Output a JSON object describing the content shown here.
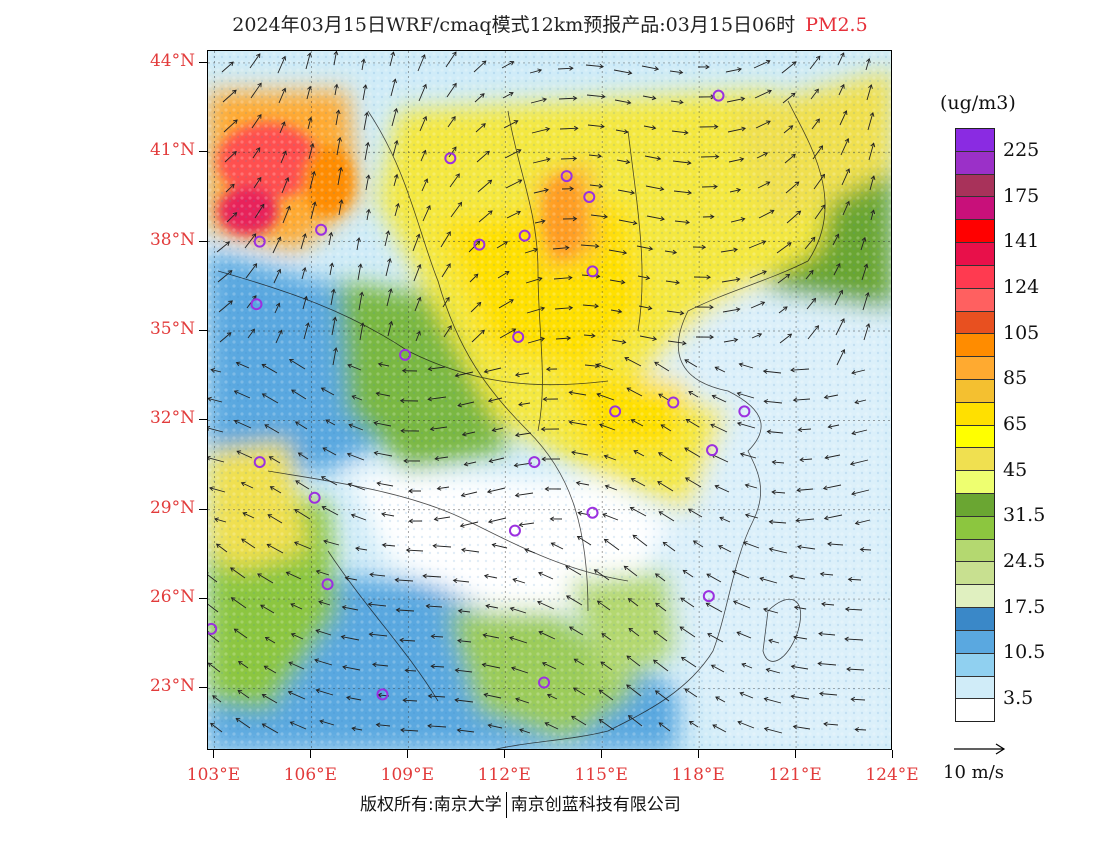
{
  "title": {
    "text": "2024年03月15日WRF/cmaq模式12km预报产品:03月15日06时",
    "pollutant": "PM2.5"
  },
  "map": {
    "lon_range": [
      102.8,
      124
    ],
    "lat_range": [
      20.9,
      44.4
    ],
    "lat_labels": [
      "44°N",
      "41°N",
      "38°N",
      "35°N",
      "32°N",
      "29°N",
      "26°N",
      "23°N"
    ],
    "lat_values": [
      44,
      41,
      38,
      35,
      32,
      29,
      26,
      23
    ],
    "lon_labels": [
      "103°E",
      "106°E",
      "109°E",
      "112°E",
      "115°E",
      "118°E",
      "121°E",
      "124°E"
    ],
    "lon_values": [
      103,
      106,
      109,
      112,
      115,
      118,
      121,
      124
    ],
    "city_markers": [
      {
        "lon": 118.6,
        "lat": 42.9
      },
      {
        "lon": 110.3,
        "lat": 40.8
      },
      {
        "lon": 113.9,
        "lat": 40.2
      },
      {
        "lon": 114.6,
        "lat": 39.5
      },
      {
        "lon": 104.4,
        "lat": 38.0
      },
      {
        "lon": 106.3,
        "lat": 38.4
      },
      {
        "lon": 111.2,
        "lat": 37.9
      },
      {
        "lon": 112.6,
        "lat": 38.2
      },
      {
        "lon": 114.7,
        "lat": 37.0
      },
      {
        "lon": 104.3,
        "lat": 35.9
      },
      {
        "lon": 108.9,
        "lat": 34.2
      },
      {
        "lon": 112.4,
        "lat": 34.8
      },
      {
        "lon": 115.4,
        "lat": 32.3
      },
      {
        "lon": 117.2,
        "lat": 32.6
      },
      {
        "lon": 119.4,
        "lat": 32.3
      },
      {
        "lon": 118.4,
        "lat": 31.0
      },
      {
        "lon": 104.4,
        "lat": 30.6
      },
      {
        "lon": 112.9,
        "lat": 30.6
      },
      {
        "lon": 106.1,
        "lat": 29.4
      },
      {
        "lon": 114.7,
        "lat": 28.9
      },
      {
        "lon": 112.3,
        "lat": 28.3
      },
      {
        "lon": 106.5,
        "lat": 26.5
      },
      {
        "lon": 118.3,
        "lat": 26.1
      },
      {
        "lon": 102.9,
        "lat": 25.0
      },
      {
        "lon": 113.2,
        "lat": 23.2
      },
      {
        "lon": 108.2,
        "lat": 22.8
      }
    ]
  },
  "legend": {
    "unit": "(ug/m3)",
    "colors": [
      "#8a2be2",
      "#9b30c8",
      "#a8325a",
      "#c8107a",
      "#ff0000",
      "#e8104a",
      "#ff3a50",
      "#ff6060",
      "#e85020",
      "#ff8c00",
      "#ffaa30",
      "#f4c030",
      "#ffe000",
      "#ffff00",
      "#f0e050",
      "#eeff70",
      "#6aa632",
      "#8cc63f",
      "#b4d870",
      "#c8e090",
      "#e0f0c0",
      "#3a88c8",
      "#5aa8e0",
      "#90d0f0",
      "#d0ecf8",
      "#ffffff"
    ],
    "labels": [
      "225",
      "175",
      "141",
      "124",
      "105",
      "85",
      "65",
      "45",
      "31.5",
      "24.5",
      "17.5",
      "10.5",
      "3.5"
    ],
    "wind_ref": "10 m/s"
  },
  "footer": {
    "copyright_prefix": "版权所有:南京大学",
    "copyright_suffix": "南京创蓝科技有限公司"
  }
}
